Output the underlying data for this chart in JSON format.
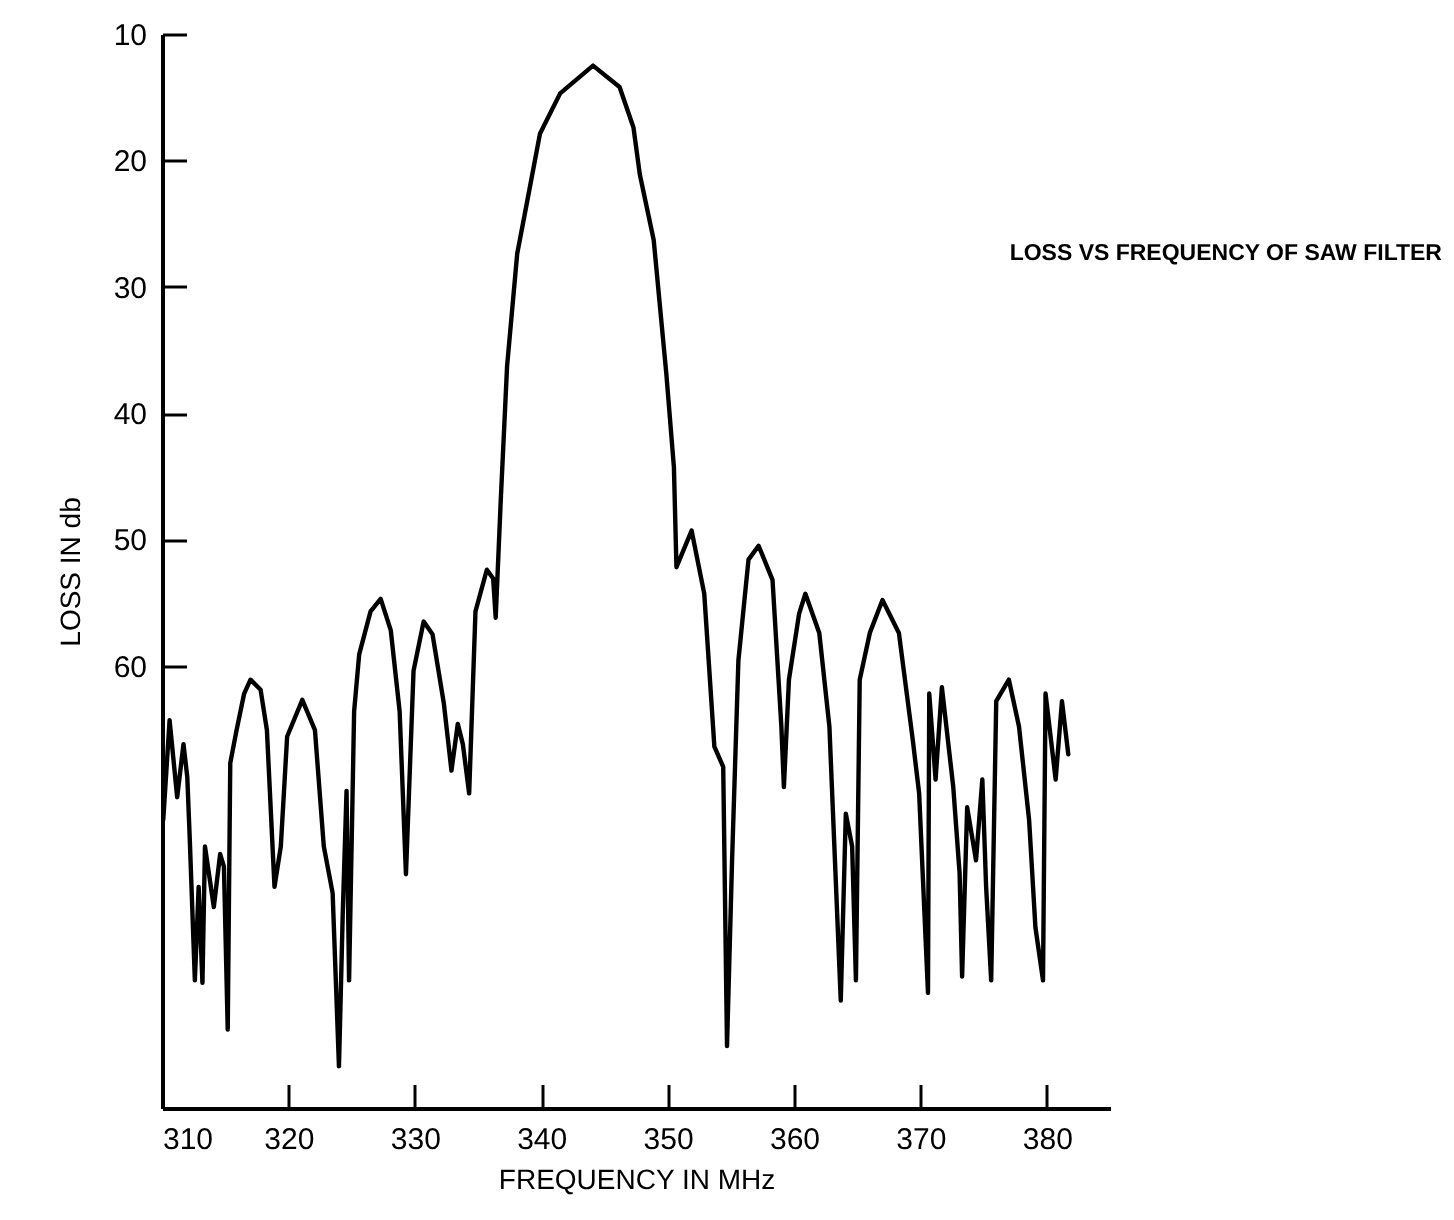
{
  "chart_data": {
    "type": "line",
    "title": "LOSS VS FREQUENCY OF SAW FILTER",
    "xlabel": "FREQUENCY IN MHz",
    "ylabel": "LOSS IN db",
    "xlim": [
      310,
      385
    ],
    "xticks": [
      310,
      320,
      330,
      340,
      350,
      360,
      370,
      380
    ],
    "ylim": [
      95,
      10
    ],
    "yticks": [
      10,
      20,
      30,
      40,
      50,
      60
    ],
    "grid": false,
    "marker": "none",
    "line_style": "solid",
    "series": [
      {
        "color": "#000000",
        "x": [
          310.0,
          310.1,
          310.6,
          311.2,
          311.7,
          312.0,
          312.2,
          312.6,
          312.9,
          313.2,
          313.4,
          314.1,
          314.6,
          314.9,
          315.2,
          315.4,
          315.9,
          316.5,
          317.0,
          317.8,
          318.3,
          318.9,
          319.4,
          319.9,
          321.1,
          322.1,
          322.8,
          323.5,
          324.0,
          324.3,
          324.6,
          324.8,
          325.2,
          325.6,
          326.5,
          327.3,
          328.1,
          328.8,
          329.3,
          329.9,
          330.7,
          331.4,
          332.3,
          332.9,
          333.4,
          333.8,
          334.3,
          334.8,
          335.7,
          336.2,
          336.4,
          336.8,
          337.3,
          338.1,
          338.9,
          339.9,
          341.5,
          344.1,
          346.2,
          347.3,
          347.8,
          348.9,
          349.9,
          350.5,
          350.7,
          351.9,
          352.9,
          353.7,
          354.4,
          354.7,
          355.1,
          355.6,
          356.4,
          357.2,
          358.3,
          359.0,
          359.2,
          359.6,
          360.4,
          360.9,
          362.0,
          362.8,
          363.7,
          364.1,
          364.6,
          364.9,
          365.2,
          366.0,
          367.0,
          368.3,
          369.4,
          369.9,
          370.6,
          370.7,
          371.2,
          371.7,
          372.6,
          373.1,
          373.3,
          373.7,
          374.4,
          374.9,
          375.2,
          375.6,
          376.0,
          377.0,
          377.8,
          378.6,
          379.1,
          379.7,
          379.9,
          380.7,
          381.2,
          381.7
        ],
        "values": [
          62.7,
          72.2,
          64.3,
          70.4,
          66.2,
          68.8,
          73.8,
          84.9,
          77.5,
          85.1,
          74.3,
          79.1,
          74.9,
          75.9,
          88.8,
          67.7,
          65.1,
          62.2,
          61.1,
          61.9,
          65.1,
          77.5,
          74.3,
          65.6,
          62.7,
          65.1,
          74.3,
          78.0,
          91.7,
          79.6,
          69.9,
          84.9,
          63.6,
          59.1,
          55.7,
          54.7,
          57.2,
          63.6,
          76.5,
          60.4,
          56.5,
          57.5,
          63.0,
          68.3,
          64.6,
          66.2,
          70.1,
          55.7,
          52.4,
          53.1,
          56.2,
          46.9,
          36.3,
          27.4,
          23.2,
          17.9,
          14.7,
          12.5,
          14.2,
          17.4,
          21.1,
          26.3,
          36.9,
          44.3,
          52.2,
          49.3,
          54.3,
          66.4,
          68.0,
          90.1,
          75.4,
          59.6,
          51.6,
          50.5,
          53.2,
          64.8,
          69.6,
          61.1,
          55.9,
          54.3,
          57.4,
          64.8,
          86.5,
          71.7,
          74.3,
          84.9,
          61.1,
          57.4,
          54.8,
          57.4,
          65.9,
          70.1,
          85.9,
          62.2,
          69.0,
          61.7,
          69.6,
          76.4,
          84.6,
          71.2,
          75.4,
          69.0,
          77.5,
          84.9,
          62.8,
          61.1,
          64.8,
          72.2,
          80.7,
          84.9,
          62.2,
          69.0,
          62.8,
          67.0
        ]
      }
    ]
  }
}
